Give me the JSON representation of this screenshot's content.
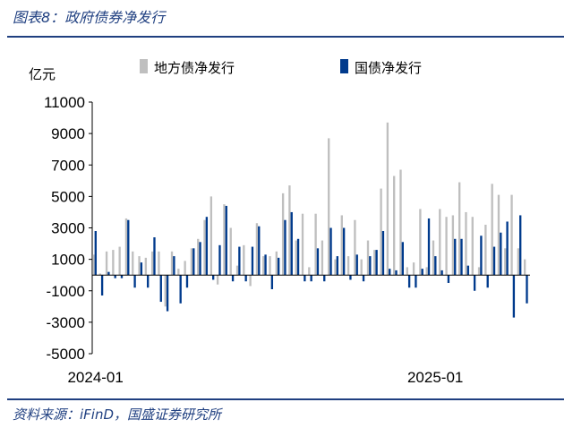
{
  "header": {
    "title": "图表8：政府债券净发行"
  },
  "footer": {
    "source": "资料来源：iFinD，国盛证券研究所"
  },
  "chart_data": {
    "type": "bar",
    "unit_label": "亿元",
    "x_labels": [
      "2024-01",
      "2025-01"
    ],
    "x_label_week_index": [
      0,
      52
    ],
    "ylim": [
      -5000,
      11000
    ],
    "yticks": [
      11000,
      9000,
      7000,
      5000,
      3000,
      1000,
      -1000,
      -3000,
      -5000
    ],
    "grid": false,
    "legend_position": "top",
    "series": [
      {
        "name": "地方债净发行",
        "color": "#bfbfbf",
        "values": [
          1300,
          100,
          1500,
          1600,
          1800,
          3600,
          1500,
          1200,
          1100,
          1500,
          1500,
          -2000,
          1500,
          400,
          900,
          1700,
          2300,
          3500,
          5000,
          -600,
          4500,
          3000,
          600,
          1900,
          -700,
          3300,
          1200,
          1200,
          1500,
          5200,
          5700,
          2200,
          3900,
          500,
          3900,
          2200,
          8700,
          1000,
          3800,
          1200,
          3500,
          1000,
          2200,
          1600,
          5500,
          9700,
          6300,
          6700,
          500,
          800,
          4200,
          500,
          2200,
          4200,
          3700,
          3800,
          5900,
          4000,
          3700,
          500,
          3200,
          5800,
          5100,
          1700,
          5100,
          1700,
          1000
        ]
      },
      {
        "name": "国债净发行",
        "color": "#003a8c",
        "values": [
          2800,
          -1300,
          200,
          -200,
          -200,
          3500,
          -800,
          800,
          -800,
          2400,
          -1700,
          -2300,
          1200,
          -1800,
          -800,
          1700,
          2100,
          3700,
          -300,
          1900,
          4400,
          -400,
          1800,
          -400,
          1800,
          3100,
          1300,
          -900,
          1100,
          3500,
          4000,
          2300,
          -400,
          -400,
          1700,
          -400,
          3000,
          1200,
          3000,
          -300,
          1300,
          -400,
          1200,
          1600,
          2800,
          400,
          300,
          2100,
          -800,
          -800,
          400,
          3600,
          1200,
          300,
          -500,
          2300,
          2300,
          600,
          -1000,
          2500,
          -800,
          1800,
          2700,
          3400,
          -2700,
          3800,
          -1800
        ]
      }
    ]
  }
}
